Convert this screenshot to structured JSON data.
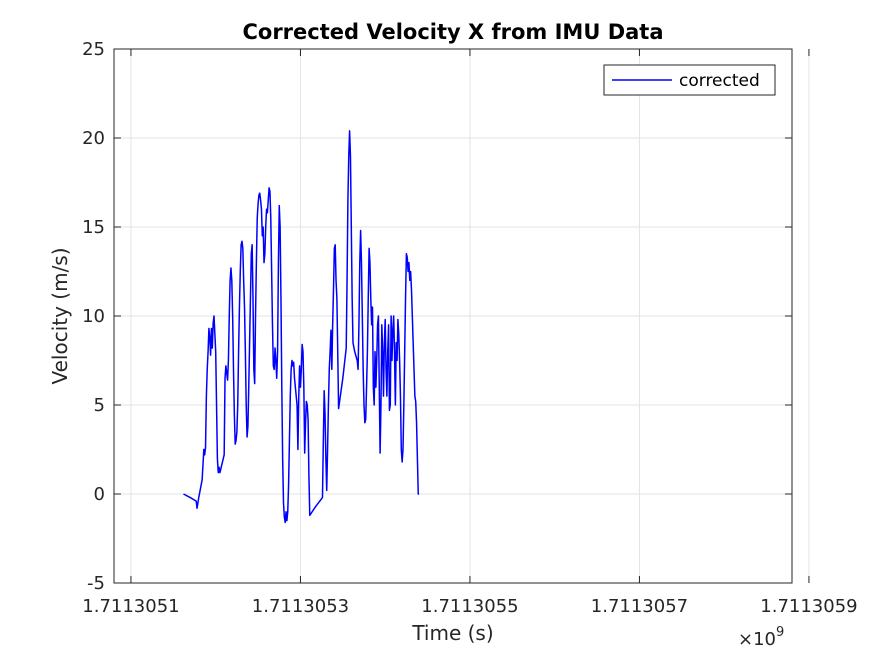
{
  "chart_data": {
    "type": "line",
    "title": "Corrected Velocity X from IMU Data",
    "xlabel": "Time (s)",
    "ylabel": "Velocity (m/s)",
    "xlim": [
      1.71130508,
      1.71130588
    ],
    "ylim": [
      -5,
      25
    ],
    "x_ticks": [
      1.7113051,
      1.7113053,
      1.7113055,
      1.7113057,
      1.7113059
    ],
    "x_tick_labels": [
      "1.7113051",
      "1.7113053",
      "1.7113055",
      "1.7113057",
      "1.7113059"
    ],
    "y_ticks": [
      -5,
      0,
      5,
      10,
      15,
      20,
      25
    ],
    "y_tick_labels": [
      "-5",
      "0",
      "5",
      "10",
      "15",
      "20",
      "25"
    ],
    "x_exponent_label": "×10",
    "x_exponent_power": "9",
    "grid": true,
    "legend_position": "top-right",
    "series": [
      {
        "name": "corrected",
        "color": "#0000ff",
        "points": [
          [
            1.711305162,
            0.0
          ],
          [
            1.71130517,
            -0.2
          ],
          [
            1.711305177,
            -0.4
          ],
          [
            1.711305178,
            -0.8
          ],
          [
            1.71130518,
            -0.2
          ],
          [
            1.711305184,
            0.8
          ],
          [
            1.711305186,
            2.5
          ],
          [
            1.711305187,
            2.2
          ],
          [
            1.711305188,
            2.6
          ],
          [
            1.711305189,
            5.5
          ],
          [
            1.71130519,
            7.0
          ],
          [
            1.711305191,
            8.0
          ],
          [
            1.711305192,
            9.3
          ],
          [
            1.711305193,
            8.8
          ],
          [
            1.711305194,
            7.8
          ],
          [
            1.711305195,
            9.3
          ],
          [
            1.711305196,
            8.2
          ],
          [
            1.711305197,
            9.6
          ],
          [
            1.711305198,
            10.0
          ],
          [
            1.711305199,
            9.0
          ],
          [
            1.7113052,
            8.0
          ],
          [
            1.711305201,
            5.0
          ],
          [
            1.711305202,
            2.0
          ],
          [
            1.711305203,
            1.2
          ],
          [
            1.711305204,
            1.5
          ],
          [
            1.711305205,
            1.2
          ],
          [
            1.711305208,
            1.8
          ],
          [
            1.71130521,
            2.2
          ],
          [
            1.711305211,
            6.5
          ],
          [
            1.711305212,
            7.2
          ],
          [
            1.711305213,
            6.8
          ],
          [
            1.711305214,
            6.4
          ],
          [
            1.711305215,
            7.5
          ],
          [
            1.711305216,
            10.0
          ],
          [
            1.711305217,
            12.0
          ],
          [
            1.711305218,
            12.7
          ],
          [
            1.711305219,
            12.0
          ],
          [
            1.71130522,
            10.0
          ],
          [
            1.711305221,
            7.0
          ],
          [
            1.711305222,
            4.5
          ],
          [
            1.711305223,
            2.8
          ],
          [
            1.711305224,
            3.0
          ],
          [
            1.711305225,
            3.5
          ],
          [
            1.711305226,
            5.0
          ],
          [
            1.711305227,
            8.0
          ],
          [
            1.711305228,
            10.5
          ],
          [
            1.711305229,
            12.5
          ],
          [
            1.71130523,
            14.0
          ],
          [
            1.711305231,
            14.2
          ],
          [
            1.711305232,
            13.8
          ],
          [
            1.711305233,
            12.0
          ],
          [
            1.711305234,
            10.5
          ],
          [
            1.711305235,
            8.0
          ],
          [
            1.711305236,
            5.0
          ],
          [
            1.711305237,
            3.2
          ],
          [
            1.711305238,
            3.8
          ],
          [
            1.711305239,
            6.0
          ],
          [
            1.71130524,
            8.5
          ],
          [
            1.711305241,
            11.0
          ],
          [
            1.711305242,
            13.5
          ],
          [
            1.711305243,
            14.0
          ],
          [
            1.711305244,
            11.0
          ],
          [
            1.711305245,
            7.0
          ],
          [
            1.711305246,
            6.2
          ],
          [
            1.711305247,
            10.0
          ],
          [
            1.711305248,
            13.0
          ],
          [
            1.711305249,
            15.5
          ],
          [
            1.71130525,
            16.3
          ],
          [
            1.711305251,
            16.8
          ],
          [
            1.711305252,
            16.9
          ],
          [
            1.711305253,
            16.5
          ],
          [
            1.711305254,
            16.0
          ],
          [
            1.711305255,
            14.5
          ],
          [
            1.711305256,
            15.0
          ],
          [
            1.711305257,
            13.0
          ],
          [
            1.711305258,
            13.5
          ],
          [
            1.711305259,
            15.0
          ],
          [
            1.71130526,
            16.0
          ],
          [
            1.711305261,
            15.8
          ],
          [
            1.711305262,
            16.5
          ],
          [
            1.711305263,
            17.2
          ],
          [
            1.711305264,
            17.0
          ],
          [
            1.711305265,
            15.5
          ],
          [
            1.711305266,
            12.5
          ],
          [
            1.711305267,
            9.5
          ],
          [
            1.711305268,
            7.2
          ],
          [
            1.711305269,
            7.0
          ],
          [
            1.71130527,
            8.2
          ],
          [
            1.711305271,
            7.5
          ],
          [
            1.711305272,
            6.5
          ],
          [
            1.711305273,
            8.0
          ],
          [
            1.711305274,
            13.0
          ],
          [
            1.711305275,
            16.2
          ],
          [
            1.711305276,
            15.0
          ],
          [
            1.711305277,
            11.0
          ],
          [
            1.711305278,
            6.0
          ],
          [
            1.711305279,
            2.0
          ],
          [
            1.71130528,
            -0.5
          ],
          [
            1.711305281,
            -1.3
          ],
          [
            1.711305282,
            -1.6
          ],
          [
            1.711305283,
            -1.0
          ],
          [
            1.711305284,
            -1.5
          ],
          [
            1.711305285,
            -1.0
          ],
          [
            1.711305286,
            0.5
          ],
          [
            1.711305287,
            3.0
          ],
          [
            1.711305288,
            5.5
          ],
          [
            1.711305289,
            7.0
          ],
          [
            1.71130529,
            7.5
          ],
          [
            1.711305291,
            7.2
          ],
          [
            1.711305292,
            7.4
          ],
          [
            1.711305293,
            6.5
          ],
          [
            1.711305294,
            6.0
          ],
          [
            1.711305295,
            5.5
          ],
          [
            1.711305296,
            5.0
          ],
          [
            1.711305297,
            2.5
          ],
          [
            1.711305298,
            5.5
          ],
          [
            1.711305299,
            7.2
          ],
          [
            1.7113053,
            6.0
          ],
          [
            1.711305301,
            7.0
          ],
          [
            1.711305302,
            8.4
          ],
          [
            1.711305303,
            8.0
          ],
          [
            1.711305304,
            6.0
          ],
          [
            1.711305305,
            2.3
          ],
          [
            1.711305306,
            4.0
          ],
          [
            1.711305307,
            5.2
          ],
          [
            1.711305308,
            5.0
          ],
          [
            1.711305309,
            4.2
          ],
          [
            1.71130531,
            1.0
          ],
          [
            1.711305311,
            -1.2
          ],
          [
            1.711305318,
            -0.7
          ],
          [
            1.711305326,
            -0.2
          ],
          [
            1.711305327,
            3.0
          ],
          [
            1.711305328,
            5.8
          ],
          [
            1.711305329,
            4.5
          ],
          [
            1.71130533,
            2.0
          ],
          [
            1.711305331,
            0.2
          ],
          [
            1.711305332,
            2.5
          ],
          [
            1.711305333,
            5.0
          ],
          [
            1.711305334,
            7.0
          ],
          [
            1.711305335,
            8.0
          ],
          [
            1.711305336,
            9.2
          ],
          [
            1.711305337,
            7.0
          ],
          [
            1.711305338,
            9.5
          ],
          [
            1.711305339,
            11.5
          ],
          [
            1.71130534,
            13.8
          ],
          [
            1.711305341,
            14.0
          ],
          [
            1.711305342,
            12.0
          ],
          [
            1.711305343,
            11.0
          ],
          [
            1.711305344,
            8.0
          ],
          [
            1.711305345,
            4.8
          ],
          [
            1.71130535,
            6.5
          ],
          [
            1.711305354,
            8.2
          ],
          [
            1.711305355,
            12.0
          ],
          [
            1.711305356,
            16.5
          ],
          [
            1.711305357,
            19.0
          ],
          [
            1.711305358,
            20.4
          ],
          [
            1.711305359,
            19.0
          ],
          [
            1.71130536,
            15.0
          ],
          [
            1.711305361,
            11.0
          ],
          [
            1.711305362,
            8.5
          ],
          [
            1.711305364,
            8.0
          ],
          [
            1.711305367,
            7.5
          ],
          [
            1.711305368,
            7.0
          ],
          [
            1.711305369,
            9.5
          ],
          [
            1.71130537,
            13.0
          ],
          [
            1.711305371,
            14.8
          ],
          [
            1.711305372,
            13.0
          ],
          [
            1.711305373,
            10.0
          ],
          [
            1.711305374,
            7.0
          ],
          [
            1.711305375,
            5.0
          ],
          [
            1.711305376,
            4.0
          ],
          [
            1.711305377,
            4.2
          ],
          [
            1.711305378,
            6.0
          ],
          [
            1.711305379,
            8.0
          ],
          [
            1.71130538,
            11.0
          ],
          [
            1.711305381,
            13.8
          ],
          [
            1.711305382,
            13.0
          ],
          [
            1.711305383,
            11.0
          ],
          [
            1.711305384,
            9.5
          ],
          [
            1.711305385,
            10.5
          ],
          [
            1.711305386,
            6.0
          ],
          [
            1.711305387,
            5.0
          ],
          [
            1.711305388,
            8.0
          ],
          [
            1.711305389,
            6.0
          ],
          [
            1.71130539,
            7.5
          ],
          [
            1.711305391,
            9.5
          ],
          [
            1.711305392,
            10.0
          ],
          [
            1.711305393,
            6.0
          ],
          [
            1.711305394,
            2.3
          ],
          [
            1.711305395,
            5.0
          ],
          [
            1.711305396,
            9.5
          ],
          [
            1.711305397,
            8.0
          ],
          [
            1.711305398,
            5.5
          ],
          [
            1.711305399,
            8.5
          ],
          [
            1.7113054,
            9.8
          ],
          [
            1.711305401,
            7.0
          ],
          [
            1.711305402,
            5.5
          ],
          [
            1.711305403,
            8.0
          ],
          [
            1.711305404,
            9.5
          ],
          [
            1.711305405,
            4.7
          ],
          [
            1.711305406,
            5.0
          ],
          [
            1.711305407,
            10.0
          ],
          [
            1.711305408,
            7.5
          ],
          [
            1.711305409,
            9.2
          ],
          [
            1.71130541,
            10.0
          ],
          [
            1.711305411,
            8.0
          ],
          [
            1.711305412,
            5.0
          ],
          [
            1.711305413,
            8.5
          ],
          [
            1.711305414,
            7.5
          ],
          [
            1.711305415,
            9.8
          ],
          [
            1.711305416,
            9.0
          ],
          [
            1.711305417,
            7.5
          ],
          [
            1.711305418,
            5.5
          ],
          [
            1.711305419,
            2.5
          ],
          [
            1.71130542,
            1.8
          ],
          [
            1.711305421,
            2.5
          ],
          [
            1.711305422,
            5.0
          ],
          [
            1.711305423,
            8.0
          ],
          [
            1.711305424,
            11.0
          ],
          [
            1.711305425,
            13.5
          ],
          [
            1.711305426,
            13.3
          ],
          [
            1.711305427,
            12.5
          ],
          [
            1.711305428,
            13.0
          ],
          [
            1.711305429,
            12.0
          ],
          [
            1.71130543,
            12.5
          ],
          [
            1.711305431,
            11.5
          ],
          [
            1.711305432,
            10.0
          ],
          [
            1.711305433,
            8.5
          ],
          [
            1.711305434,
            7.0
          ],
          [
            1.711305435,
            5.5
          ],
          [
            1.711305436,
            5.2
          ],
          [
            1.711305437,
            4.0
          ],
          [
            1.711305438,
            2.0
          ],
          [
            1.711305439,
            0.0
          ],
          [
            1.71130544,
            0.0
          ]
        ]
      }
    ]
  }
}
